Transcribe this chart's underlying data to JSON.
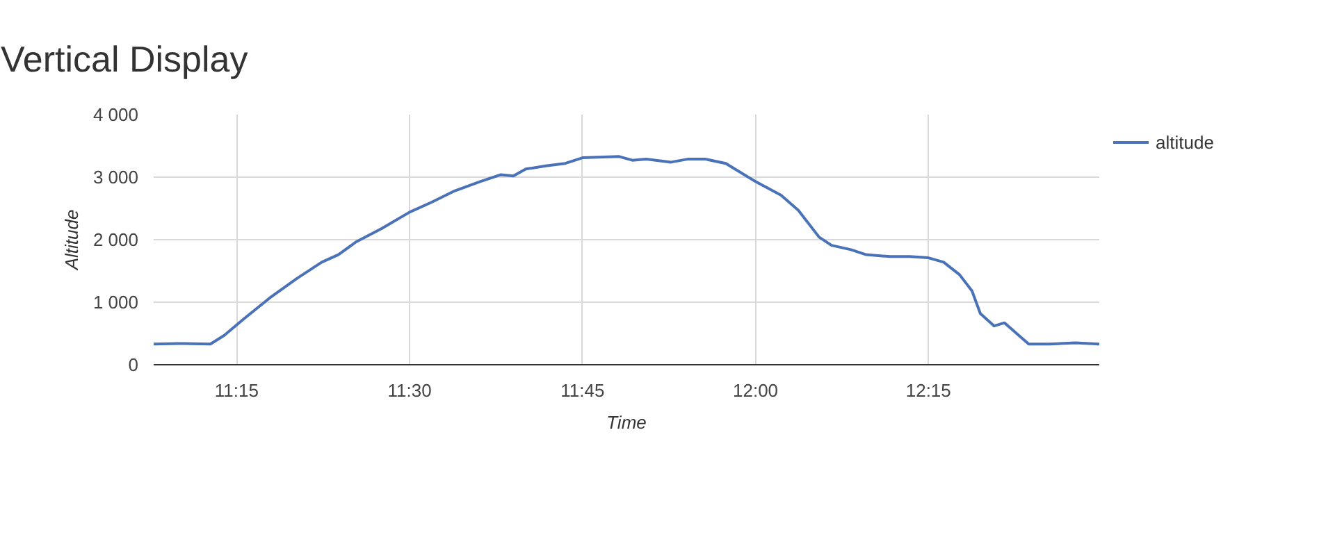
{
  "chart_data": {
    "type": "line",
    "title": "Vertical Display",
    "xlabel": "Time",
    "ylabel": "Altitude",
    "x": [
      11.13,
      11.173,
      11.212,
      11.232,
      11.26,
      11.298,
      11.337,
      11.373,
      11.397,
      11.422,
      11.46,
      11.5,
      11.532,
      11.565,
      11.602,
      11.632,
      11.65,
      11.668,
      11.697,
      11.725,
      11.75,
      11.803,
      11.822,
      11.842,
      11.878,
      11.903,
      11.927,
      11.957,
      12.0,
      12.037,
      12.062,
      12.092,
      12.11,
      12.138,
      12.16,
      12.195,
      12.223,
      12.25,
      12.272,
      12.295,
      12.313,
      12.325,
      12.345,
      12.36,
      12.395,
      12.425,
      12.463,
      12.497
    ],
    "series": [
      {
        "name": "altitude",
        "color": "#4a72b8",
        "values": [
          330,
          340,
          330,
          470,
          730,
          1070,
          1380,
          1640,
          1760,
          1960,
          2180,
          2440,
          2600,
          2780,
          2930,
          3040,
          3020,
          3130,
          3180,
          3220,
          3310,
          3330,
          3270,
          3290,
          3240,
          3290,
          3290,
          3220,
          2930,
          2710,
          2470,
          2040,
          1910,
          1840,
          1760,
          1730,
          1730,
          1710,
          1640,
          1440,
          1180,
          820,
          620,
          670,
          330,
          330,
          350,
          330
        ]
      }
    ],
    "xlim": [
      11.13,
      12.497
    ],
    "ylim": [
      0,
      4000
    ],
    "xticks": [
      {
        "value": 11.25,
        "label": "11:15"
      },
      {
        "value": 11.5,
        "label": "11:30"
      },
      {
        "value": 11.75,
        "label": "11:45"
      },
      {
        "value": 12.0,
        "label": "12:00"
      },
      {
        "value": 12.25,
        "label": "12:15"
      }
    ],
    "yticks": [
      0,
      {
        "value": 1000,
        "label": "1 000"
      },
      {
        "value": 2000,
        "label": "2 000"
      },
      {
        "value": 3000,
        "label": "3 000"
      },
      {
        "value": 4000,
        "label": "4 000"
      }
    ],
    "grid": true,
    "legend": "right",
    "marker": "none",
    "line_style": "solid"
  }
}
